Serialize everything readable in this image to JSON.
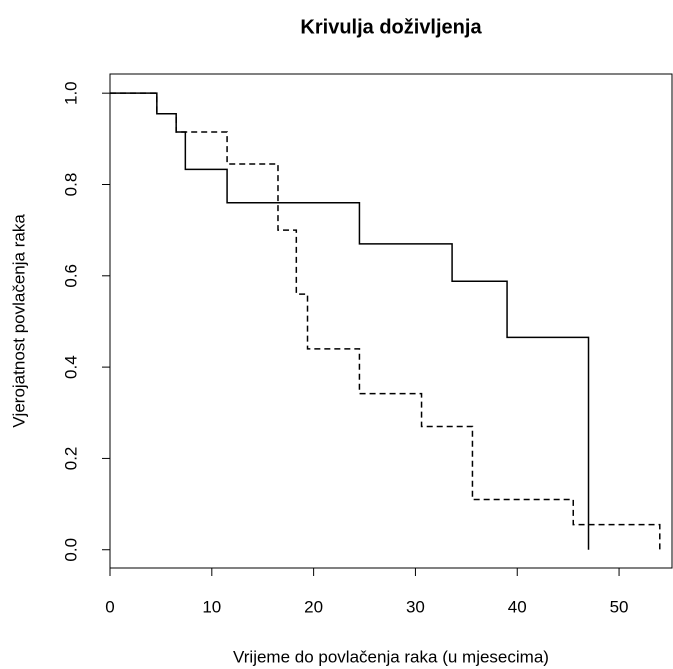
{
  "chart_data": {
    "type": "step",
    "title": "Krivulja doživljenja",
    "x_label": "Vrijeme do povlačenja raka (u mjesecima)",
    "y_label": "Vjerojatnost povlačenja raka",
    "xlim": [
      0,
      55.2
    ],
    "ylim": [
      -0.04,
      1.042
    ],
    "xticks": [
      0,
      10,
      20,
      30,
      40,
      50
    ],
    "yticks": [
      {
        "value": 0,
        "label": "0.0"
      },
      {
        "value": 0.2,
        "label": "0.2"
      },
      {
        "value": 0.4,
        "label": "0.4"
      },
      {
        "value": 0.6,
        "label": "0.6"
      },
      {
        "value": 0.8,
        "label": "0.8"
      },
      {
        "value": 1,
        "label": "1.0"
      }
    ],
    "series": [
      {
        "color": "#000000",
        "dashed": false,
        "x": [
          0,
          4.6,
          6.5,
          7.4,
          11.5,
          24.5,
          33.6,
          39,
          47
        ],
        "values": [
          1,
          0.955,
          0.915,
          0.833,
          0.76,
          0.67,
          0.588,
          0.465,
          0
        ]
      },
      {
        "color": "#000000",
        "dashed": true,
        "x": [
          0,
          4.6,
          6.5,
          11.5,
          16.5,
          18.3,
          19.4,
          24.5,
          30.6,
          35.6,
          45.5,
          54
        ],
        "values": [
          1,
          0.955,
          0.915,
          0.845,
          0.7,
          0.56,
          0.44,
          0.342,
          0.27,
          0.11,
          0.055,
          0
        ]
      }
    ]
  }
}
